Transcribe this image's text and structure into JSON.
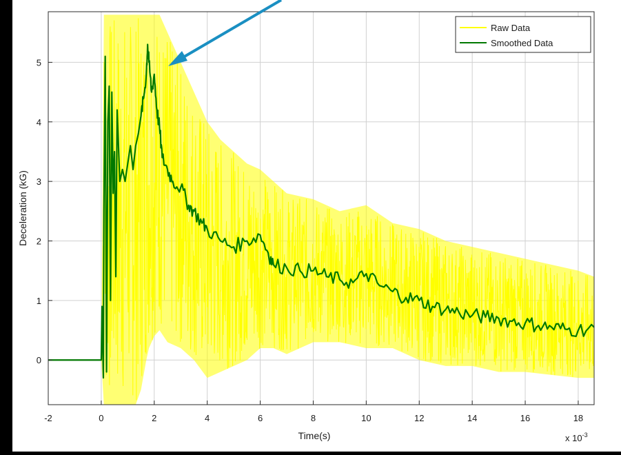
{
  "chart_data": {
    "type": "line",
    "xlabel": "Time(s)",
    "ylabel": "Deceleration (kG)",
    "x_multiplier_label": "x 10",
    "x_multiplier_exponent": "-3",
    "xlim": [
      -0.002,
      0.0186
    ],
    "ylim": [
      -0.75,
      5.85
    ],
    "x_ticks": [
      -0.002,
      0,
      0.002,
      0.004,
      0.006,
      0.008,
      0.01,
      0.012,
      0.014,
      0.016,
      0.018
    ],
    "x_tick_labels": [
      "-2",
      "0",
      "2",
      "4",
      "6",
      "8",
      "10",
      "12",
      "14",
      "16",
      "18"
    ],
    "y_ticks": [
      0,
      1,
      2,
      3,
      4,
      5
    ],
    "y_tick_labels": [
      "0",
      "1",
      "2",
      "3",
      "4",
      "5"
    ],
    "grid": true,
    "legend_position": "top-right",
    "series": [
      {
        "name": "Raw Data",
        "color": "#ffff00",
        "x": [
          -0.002,
          0,
          0.0001,
          0.0002,
          0.0003,
          0.0005,
          0.0008,
          0.001,
          0.0013,
          0.0015,
          0.0017,
          0.0018,
          0.002,
          0.0022,
          0.0025,
          0.003,
          0.0035,
          0.004,
          0.0045,
          0.005,
          0.0055,
          0.006,
          0.0065,
          0.007,
          0.008,
          0.009,
          0.01,
          0.011,
          0.012,
          0.013,
          0.014,
          0.015,
          0.016,
          0.017,
          0.018,
          0.0186
        ],
        "y": [
          0,
          0,
          3.0,
          5.8,
          -0.7,
          5.8,
          3.5,
          5.8,
          2.5,
          5.8,
          5.0,
          5.8,
          3.0,
          5.0,
          2.8,
          3.5,
          2.0,
          3.0,
          1.5,
          2.5,
          1.6,
          2.3,
          1.8,
          1.6,
          1.4,
          1.5,
          1.3,
          1.2,
          1.1,
          0.9,
          0.8,
          0.7,
          0.65,
          0.6,
          0.55,
          0.5
        ],
        "y_envelope_upper": [
          0,
          0,
          5.8,
          5.8,
          5.8,
          5.8,
          5.8,
          5.8,
          5.8,
          5.8,
          5.8,
          5.8,
          5.8,
          5.8,
          5.5,
          5.0,
          4.5,
          4.0,
          3.7,
          3.5,
          3.3,
          3.2,
          3.0,
          2.8,
          2.7,
          2.5,
          2.6,
          2.3,
          2.2,
          2.0,
          1.9,
          1.8,
          1.7,
          1.6,
          1.5,
          1.4
        ],
        "y_envelope_lower": [
          0,
          0,
          -0.75,
          -0.75,
          -0.75,
          -0.75,
          -0.75,
          -0.75,
          -0.75,
          -0.5,
          0,
          0.2,
          0.4,
          0.5,
          0.3,
          0.2,
          0.0,
          -0.3,
          -0.2,
          -0.1,
          0.0,
          0.2,
          0.2,
          0.1,
          0.3,
          0.3,
          0.2,
          0.2,
          0.0,
          -0.1,
          -0.1,
          -0.2,
          -0.2,
          -0.25,
          -0.3,
          -0.3
        ]
      },
      {
        "name": "Smoothed Data",
        "color": "#007800",
        "x": [
          -0.002,
          0,
          3e-05,
          8e-05,
          0.0001,
          0.00015,
          0.0002,
          0.00025,
          0.0003,
          0.00035,
          0.0004,
          0.00045,
          0.0005,
          0.00055,
          0.0006,
          0.0007,
          0.0008,
          0.0009,
          0.001,
          0.0011,
          0.0012,
          0.0013,
          0.0014,
          0.0015,
          0.0016,
          0.0017,
          0.00175,
          0.0018,
          0.0019,
          0.002,
          0.0021,
          0.0022,
          0.0023,
          0.0025,
          0.0027,
          0.003,
          0.0033,
          0.0035,
          0.0038,
          0.004,
          0.0045,
          0.005,
          0.0055,
          0.006,
          0.0063,
          0.0065,
          0.007,
          0.0075,
          0.008,
          0.0085,
          0.009,
          0.0095,
          0.01,
          0.0105,
          0.011,
          0.0115,
          0.012,
          0.0125,
          0.013,
          0.0135,
          0.014,
          0.0145,
          0.015,
          0.0155,
          0.016,
          0.0165,
          0.017,
          0.0175,
          0.018,
          0.0186
        ],
        "y": [
          0,
          0,
          0.9,
          -0.3,
          2.5,
          5.1,
          -0.2,
          4.0,
          4.6,
          1.0,
          4.5,
          2.8,
          3.5,
          1.4,
          4.2,
          3.0,
          3.2,
          3.0,
          3.3,
          3.6,
          3.2,
          3.6,
          3.8,
          4.1,
          4.4,
          4.8,
          5.3,
          5.0,
          4.5,
          4.8,
          4.2,
          3.9,
          3.4,
          3.2,
          3.0,
          2.9,
          2.6,
          2.5,
          2.3,
          2.2,
          2.0,
          1.9,
          2.0,
          2.1,
          1.8,
          1.6,
          1.55,
          1.5,
          1.5,
          1.4,
          1.35,
          1.3,
          1.45,
          1.25,
          1.15,
          1.05,
          1.0,
          0.9,
          0.85,
          0.8,
          0.75,
          0.72,
          0.7,
          0.65,
          0.62,
          0.58,
          0.55,
          0.52,
          0.5,
          0.55
        ]
      }
    ]
  }
}
